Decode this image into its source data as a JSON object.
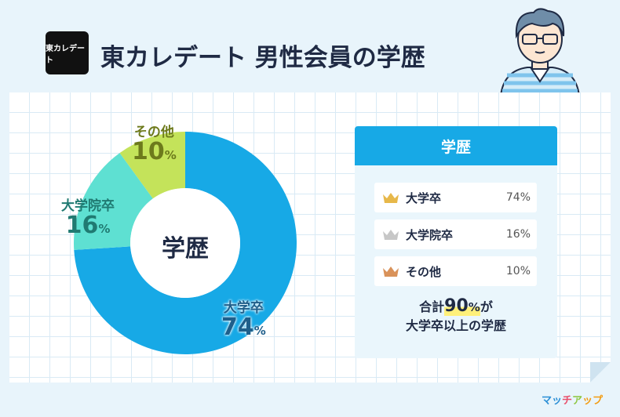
{
  "header": {
    "logo_text": "東カレデート",
    "title": "東カレデート 男性会員の学歴"
  },
  "chart_data": {
    "type": "pie",
    "center_label": "学歴",
    "slices": [
      {
        "name": "大学卒",
        "value": 74,
        "color": "#17a9e6"
      },
      {
        "name": "大学院卒",
        "value": 16,
        "color": "#5ee0d2"
      },
      {
        "name": "その他",
        "value": 10,
        "color": "#c4e35a"
      }
    ],
    "value_unit": "%"
  },
  "panel": {
    "title": "学歴",
    "rows": [
      {
        "name": "大学卒",
        "value": "74%",
        "crown": "gold-crown-icon",
        "crown_color": "#e7b84a"
      },
      {
        "name": "大学院卒",
        "value": "16%",
        "crown": "silver-crown-icon",
        "crown_color": "#c7c7c7"
      },
      {
        "name": "その他",
        "value": "10%",
        "crown": "bronze-crown-icon",
        "crown_color": "#d9925a"
      }
    ],
    "summary_prefix": "合計",
    "summary_number": "90",
    "summary_unit": "%",
    "summary_suffix": "が",
    "summary_line2": "大学卒以上の学歴"
  },
  "footer": {
    "brand": [
      "マッ",
      "チ",
      "ア",
      "ップ"
    ]
  }
}
